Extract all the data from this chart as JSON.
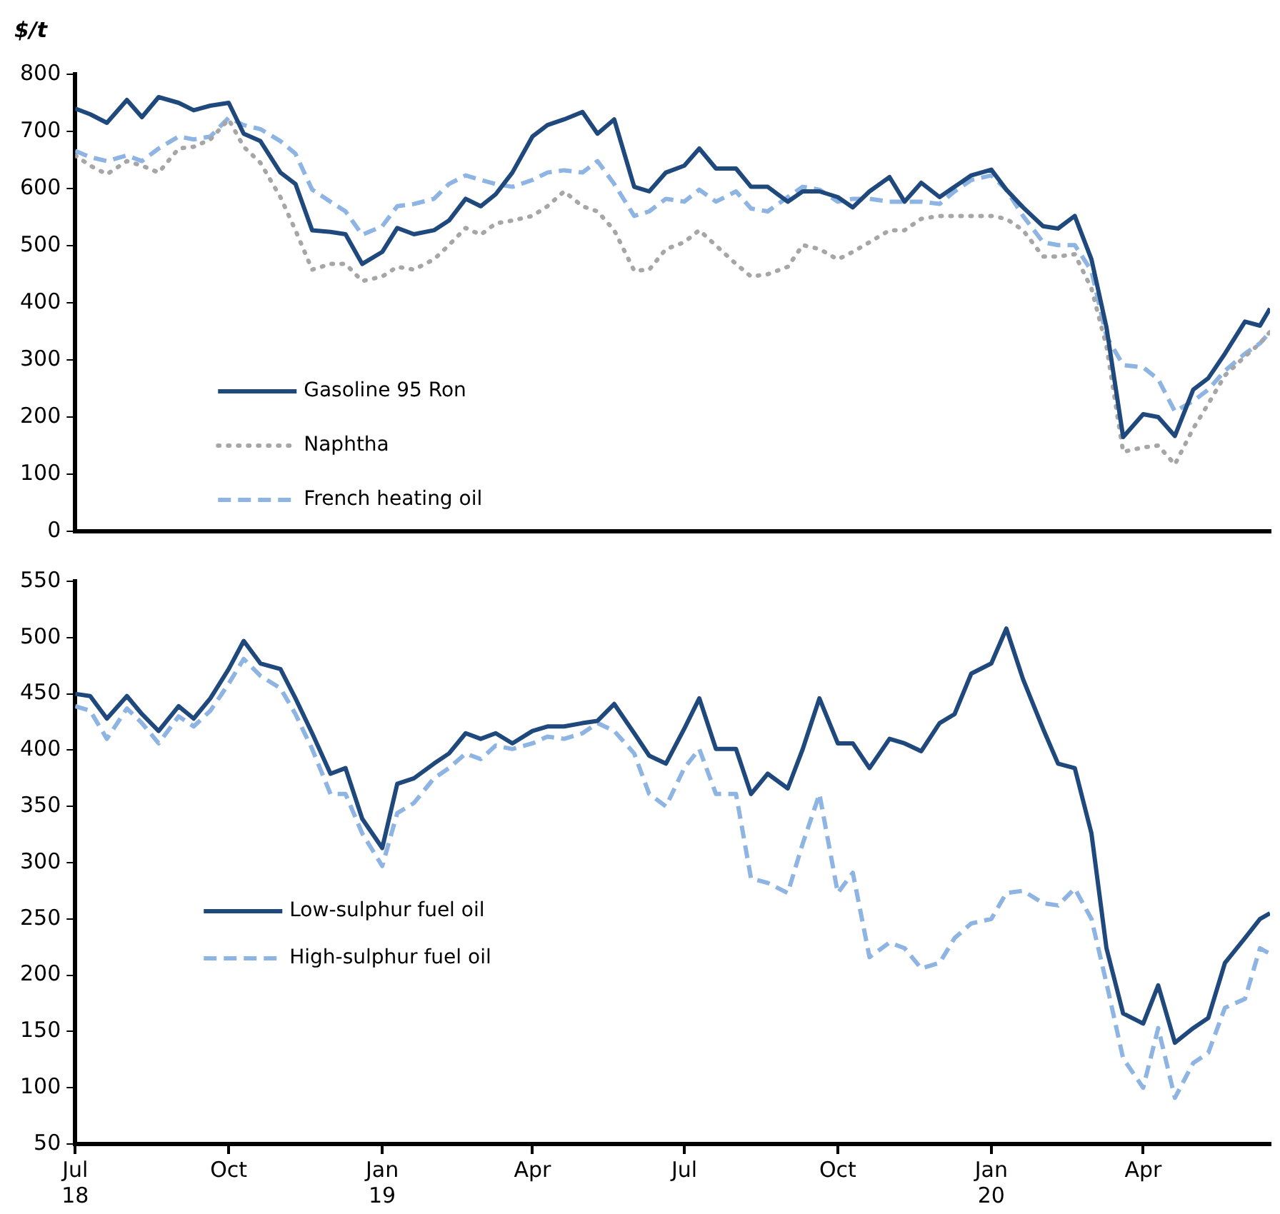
{
  "chart_data": [
    {
      "type": "line",
      "ylabel": "$/t",
      "legend": "bottom left",
      "tick_labels": "y",
      "x": [
        "2018-07-01",
        "2018-07-10",
        "2018-07-20",
        "2018-08-01",
        "2018-08-10",
        "2018-08-20",
        "2018-09-01",
        "2018-09-10",
        "2018-09-20",
        "2018-10-01",
        "2018-10-10",
        "2018-10-20",
        "2018-11-01",
        "2018-11-10",
        "2018-11-20",
        "2018-12-01",
        "2018-12-10",
        "2018-12-20",
        "2019-01-01",
        "2019-01-10",
        "2019-01-20",
        "2019-02-01",
        "2019-02-10",
        "2019-02-20",
        "2019-03-01",
        "2019-03-10",
        "2019-03-20",
        "2019-04-01",
        "2019-04-10",
        "2019-04-20",
        "2019-05-01",
        "2019-05-10",
        "2019-05-20",
        "2019-06-01",
        "2019-06-10",
        "2019-06-20",
        "2019-07-01",
        "2019-07-10",
        "2019-07-20",
        "2019-08-01",
        "2019-08-10",
        "2019-08-20",
        "2019-09-01",
        "2019-09-10",
        "2019-09-20",
        "2019-10-01",
        "2019-10-10",
        "2019-10-20",
        "2019-11-01",
        "2019-11-10",
        "2019-11-20",
        "2019-12-01",
        "2019-12-10",
        "2019-12-20",
        "2020-01-01",
        "2020-01-10",
        "2020-01-20",
        "2020-02-01",
        "2020-02-10",
        "2020-02-20",
        "2020-03-01",
        "2020-03-10",
        "2020-03-20",
        "2020-04-01",
        "2020-04-10",
        "2020-04-20",
        "2020-05-01",
        "2020-05-10",
        "2020-05-20",
        "2020-06-01",
        "2020-06-10",
        "2020-06-16"
      ],
      "xlim": [
        "2018-07-01",
        "2020-06-16"
      ],
      "ylim": [
        0,
        800
      ],
      "yticks": [
        0,
        100,
        200,
        300,
        400,
        500,
        600,
        700,
        800
      ],
      "series": [
        {
          "name": "Gasoline 95 Ron",
          "color": "#1f497d",
          "line_style": "solid",
          "values": [
            740,
            730,
            715,
            755,
            725,
            760,
            750,
            737,
            745,
            750,
            696,
            683,
            628,
            608,
            527,
            524,
            520,
            468,
            489,
            531,
            520,
            527,
            544,
            582,
            569,
            590,
            628,
            691,
            711,
            721,
            734,
            696,
            721,
            603,
            595,
            628,
            640,
            670,
            635,
            635,
            603,
            603,
            577,
            595,
            595,
            585,
            567,
            595,
            620,
            577,
            610,
            585,
            603,
            623,
            633,
            598,
            567,
            534,
            530,
            552,
            476,
            357,
            165,
            205,
            200,
            167,
            248,
            268,
            311,
            367,
            360,
            390
          ]
        },
        {
          "name": "Naphtha",
          "color": "#a6a6a6",
          "line_style": "dotted",
          "values": [
            658,
            640,
            625,
            648,
            640,
            628,
            670,
            673,
            686,
            721,
            673,
            645,
            585,
            527,
            458,
            468,
            468,
            438,
            446,
            463,
            458,
            476,
            501,
            531,
            519,
            539,
            544,
            552,
            569,
            595,
            569,
            560,
            527,
            456,
            458,
            494,
            506,
            527,
            500,
            468,
            446,
            450,
            463,
            501,
            494,
            476,
            489,
            506,
            527,
            527,
            547,
            552,
            552,
            552,
            552,
            547,
            527,
            481,
            481,
            485,
            425,
            324,
            139,
            147,
            150,
            117,
            180,
            223,
            273,
            306,
            329,
            349
          ]
        },
        {
          "name": "French heating oil",
          "color": "#8db4e2",
          "line_style": "dashed",
          "values": [
            666,
            655,
            648,
            658,
            648,
            670,
            691,
            686,
            691,
            724,
            711,
            704,
            683,
            661,
            598,
            577,
            560,
            519,
            534,
            569,
            573,
            582,
            608,
            623,
            615,
            608,
            603,
            615,
            628,
            632,
            628,
            648,
            608,
            552,
            560,
            582,
            577,
            598,
            577,
            595,
            565,
            560,
            585,
            603,
            598,
            577,
            582,
            582,
            577,
            577,
            577,
            573,
            595,
            615,
            623,
            598,
            552,
            506,
            501,
            501,
            456,
            341,
            291,
            287,
            266,
            210,
            228,
            248,
            281,
            311,
            329,
            349
          ]
        }
      ]
    },
    {
      "type": "line",
      "legend": "bottom left",
      "x": [
        "2018-07-01",
        "2018-07-10",
        "2018-07-20",
        "2018-08-01",
        "2018-08-10",
        "2018-08-20",
        "2018-09-01",
        "2018-09-10",
        "2018-09-20",
        "2018-10-01",
        "2018-10-10",
        "2018-10-20",
        "2018-11-01",
        "2018-11-10",
        "2018-11-20",
        "2018-12-01",
        "2018-12-10",
        "2018-12-20",
        "2019-01-01",
        "2019-01-10",
        "2019-01-20",
        "2019-02-01",
        "2019-02-10",
        "2019-02-20",
        "2019-03-01",
        "2019-03-10",
        "2019-03-20",
        "2019-04-01",
        "2019-04-10",
        "2019-04-20",
        "2019-05-01",
        "2019-05-10",
        "2019-05-20",
        "2019-06-01",
        "2019-06-10",
        "2019-06-20",
        "2019-07-01",
        "2019-07-10",
        "2019-07-20",
        "2019-08-01",
        "2019-08-10",
        "2019-08-20",
        "2019-09-01",
        "2019-09-10",
        "2019-09-20",
        "2019-10-01",
        "2019-10-10",
        "2019-10-20",
        "2019-11-01",
        "2019-11-10",
        "2019-11-20",
        "2019-12-01",
        "2019-12-10",
        "2019-12-20",
        "2020-01-01",
        "2020-01-10",
        "2020-01-20",
        "2020-02-01",
        "2020-02-10",
        "2020-02-20",
        "2020-03-01",
        "2020-03-10",
        "2020-03-20",
        "2020-04-01",
        "2020-04-10",
        "2020-04-20",
        "2020-05-01",
        "2020-05-10",
        "2020-05-20",
        "2020-06-01",
        "2020-06-10",
        "2020-06-16"
      ],
      "xlim": [
        "2018-07-01",
        "2020-06-16"
      ],
      "xticks": [
        {
          "value": "2018-07-01",
          "label": "Jul\n18"
        },
        {
          "value": "2018-10-01",
          "label": "Oct"
        },
        {
          "value": "2019-01-01",
          "label": "Jan\n19"
        },
        {
          "value": "2019-04-01",
          "label": "Apr"
        },
        {
          "value": "2019-07-01",
          "label": "Jul"
        },
        {
          "value": "2019-10-01",
          "label": "Oct"
        },
        {
          "value": "2020-01-01",
          "label": "Jan\n20"
        },
        {
          "value": "2020-04-01",
          "label": "Apr"
        }
      ],
      "ylim": [
        50,
        550
      ],
      "yticks": [
        50,
        100,
        150,
        200,
        250,
        300,
        350,
        400,
        450,
        500,
        550
      ],
      "series": [
        {
          "name": "Low-sulphur fuel oil",
          "color": "#1f497d",
          "line_style": "solid",
          "values": [
            450,
            448,
            428,
            448,
            432,
            417,
            439,
            428,
            446,
            472,
            497,
            477,
            472,
            446,
            415,
            379,
            384,
            339,
            313,
            370,
            375,
            388,
            397,
            415,
            410,
            415,
            406,
            417,
            421,
            421,
            424,
            426,
            441,
            415,
            395,
            388,
            419,
            446,
            401,
            401,
            361,
            379,
            366,
            401,
            446,
            406,
            406,
            384,
            410,
            406,
            399,
            424,
            432,
            468,
            477,
            508,
            463,
            419,
            388,
            384,
            326,
            224,
            166,
            157,
            191,
            140,
            153,
            162,
            211,
            233,
            250,
            255
          ]
        },
        {
          "name": "High-sulphur fuel oil",
          "color": "#8db4e2",
          "line_style": "dashed",
          "values": [
            439,
            435,
            410,
            437,
            424,
            406,
            430,
            421,
            435,
            459,
            481,
            466,
            455,
            432,
            401,
            361,
            361,
            326,
            297,
            344,
            353,
            375,
            384,
            397,
            392,
            404,
            401,
            406,
            412,
            410,
            415,
            424,
            417,
            397,
            361,
            350,
            384,
            401,
            361,
            361,
            286,
            282,
            273,
            317,
            361,
            273,
            291,
            216,
            229,
            224,
            206,
            211,
            233,
            246,
            250,
            273,
            275,
            264,
            262,
            277,
            250,
            193,
            126,
            100,
            153,
            91,
            122,
            131,
            171,
            179,
            224,
            219
          ]
        }
      ]
    }
  ]
}
